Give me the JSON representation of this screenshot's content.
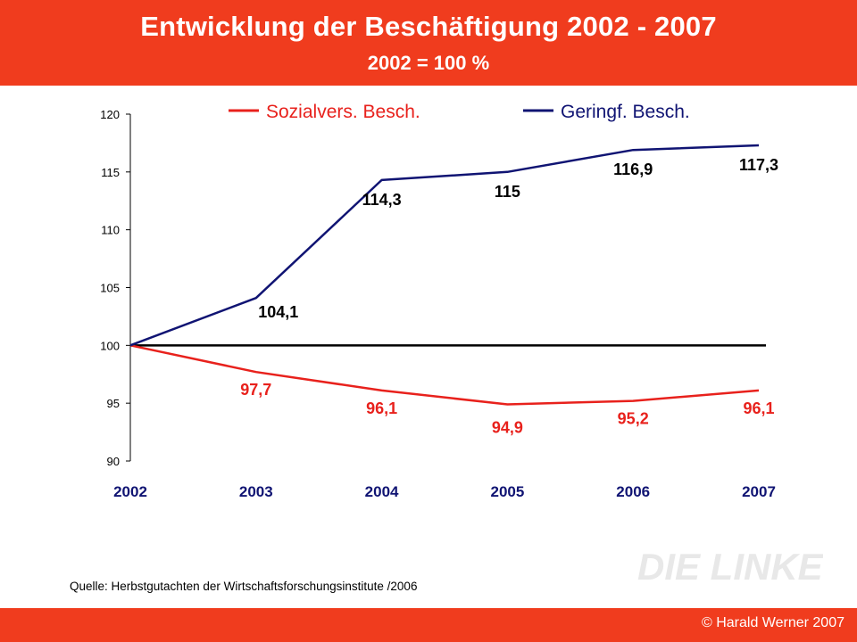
{
  "header": {
    "title": "Entwicklung der Beschäftigung 2002 - 2007",
    "subtitle": "2002 = 100 %"
  },
  "source": "Quelle: Herbstgutachten der Wirtschaftsforschungsinstitute /2006",
  "logo_text": "DIE LINKE.",
  "copyright": "© Harald Werner 2007",
  "colors": {
    "brand": "#f03c1e",
    "sozialvers": "#e8211c",
    "geringf": "#101473",
    "baseline": "#000000",
    "logo": "#e8e8e8"
  },
  "chart_data": {
    "type": "line",
    "categories": [
      "2002",
      "2003",
      "2004",
      "2005",
      "2006",
      "2007"
    ],
    "ylim": [
      90,
      120
    ],
    "yticks": [
      90,
      95,
      100,
      105,
      110,
      115,
      120
    ],
    "ytick_labels": [
      "90",
      "95",
      "100",
      "105",
      "110",
      "115",
      "120"
    ],
    "baseline": 100,
    "grid": false,
    "legend_position": "top",
    "series": [
      {
        "name": "Sozialvers. Besch.",
        "color": "#e8211c",
        "values": [
          100,
          97.7,
          96.1,
          94.9,
          95.2,
          96.1
        ],
        "labels": [
          "",
          "97,7",
          "96,1",
          "94,9",
          "95,2",
          "96,1"
        ]
      },
      {
        "name": "Geringf. Besch.",
        "color": "#101473",
        "values": [
          100,
          104.1,
          114.3,
          115,
          116.9,
          117.3
        ],
        "labels": [
          "",
          "104,1",
          "114,3",
          "115",
          "116,9",
          "117,3"
        ]
      }
    ]
  }
}
